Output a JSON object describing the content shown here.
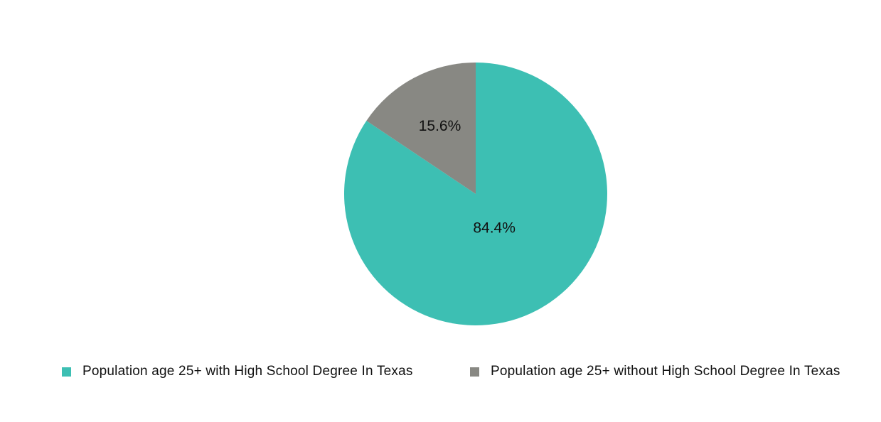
{
  "chart_data": {
    "type": "pie",
    "title": "",
    "slices": [
      {
        "label": "Population age 25+ with High School Degree In Texas",
        "value": 84.4,
        "display": "84.4%",
        "color": "#3dbfb3"
      },
      {
        "label": "Population age 25+ without High School Degree In Texas",
        "value": 15.6,
        "display": "15.6%",
        "color": "#888883"
      }
    ],
    "start": "12 o'clock, clockwise",
    "legend": "bottom"
  }
}
